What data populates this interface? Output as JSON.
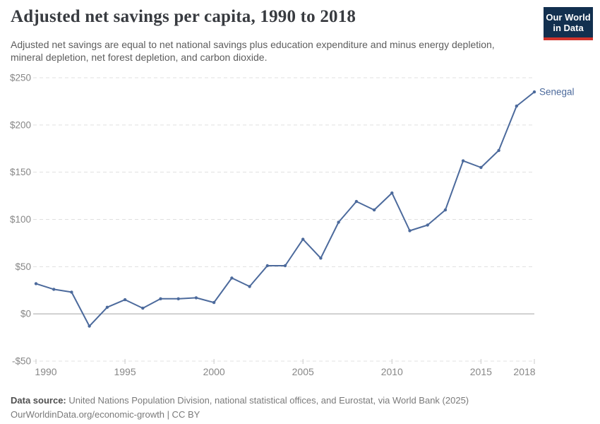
{
  "header": {
    "title": "Adjusted net savings per capita, 1990 to 2018",
    "subtitle_lines": [
      "Adjusted net savings are equal to net national savings plus education expenditure and minus energy depletion,",
      "mineral depletion, net forest depletion, and carbon dioxide."
    ],
    "logo": {
      "line1": "Our World",
      "line2": "in Data",
      "bg_color": "#12304f",
      "accent_color": "#d0342c",
      "text_color": "#ffffff"
    }
  },
  "chart_data": {
    "type": "line",
    "title": "Adjusted net savings per capita, 1990 to 2018",
    "xlabel": "",
    "ylabel": "",
    "xlim": [
      1990,
      2018
    ],
    "ylim": [
      -50,
      250
    ],
    "grid": "horizontal-dashed",
    "zero_axis": true,
    "legend_position": "end-of-line",
    "x": [
      1990,
      1991,
      1992,
      1993,
      1994,
      1995,
      1996,
      1997,
      1998,
      1999,
      2000,
      2001,
      2002,
      2003,
      2004,
      2005,
      2006,
      2007,
      2008,
      2009,
      2010,
      2011,
      2012,
      2013,
      2014,
      2015,
      2016,
      2017,
      2018
    ],
    "series": [
      {
        "name": "Senegal",
        "color": "#4C6A9C",
        "values": [
          32,
          26,
          23,
          -13,
          7,
          15,
          6,
          16,
          16,
          17,
          12,
          38,
          29,
          51,
          51,
          79,
          59,
          97,
          119,
          110,
          128,
          88,
          94,
          110,
          162,
          155,
          173,
          220,
          235
        ]
      }
    ],
    "x_ticks": [
      1990,
      1995,
      2000,
      2005,
      2010,
      2015,
      2018
    ],
    "y_ticks": [
      {
        "value": -50,
        "label": "-$50"
      },
      {
        "value": 0,
        "label": "$0"
      },
      {
        "value": 50,
        "label": "$50"
      },
      {
        "value": 100,
        "label": "$100"
      },
      {
        "value": 150,
        "label": "$150"
      },
      {
        "value": 200,
        "label": "$200"
      },
      {
        "value": 250,
        "label": "$250"
      }
    ]
  },
  "colors": {
    "line": "#4C6A9C",
    "grid": "#e0e0e0",
    "zero_line": "#a5a5a5",
    "tick": "#c8c8c8",
    "axis_text": "#878787"
  },
  "footer": {
    "source_bold": "Data source:",
    "source_rest": " United Nations Population Division, national statistical offices, and Eurostat, via World Bank (2025)",
    "license_line": "OurWorldinData.org/economic-growth | CC BY"
  }
}
